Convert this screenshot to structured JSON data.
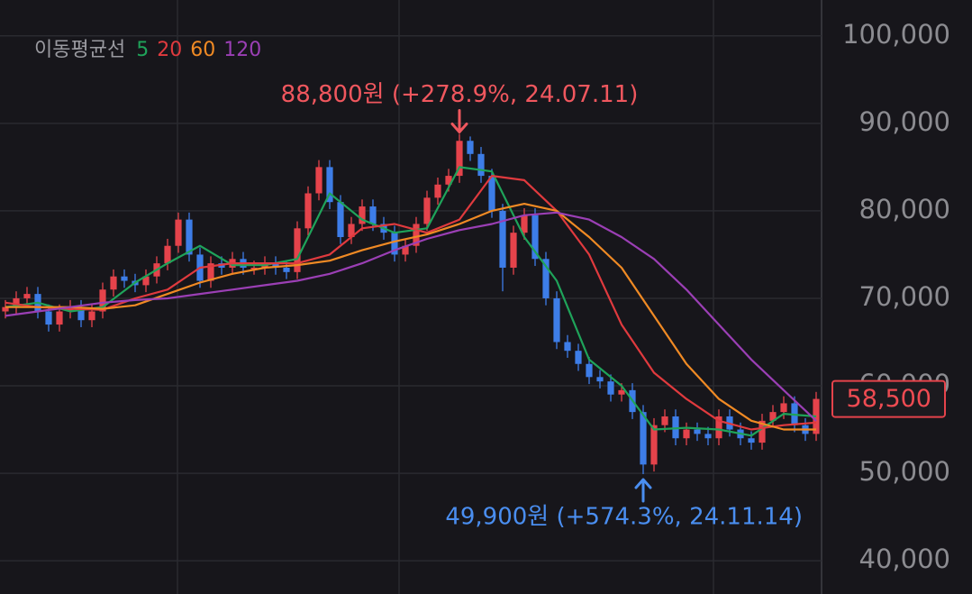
{
  "chart_data": {
    "type": "candlestick",
    "legend_title": "이동평균선",
    "xlim": [
      -0.5,
      75.5
    ],
    "ylim": [
      36200,
      104100
    ],
    "yticks": [
      {
        "value": 40000,
        "label": "40,000"
      },
      {
        "value": 50000,
        "label": "50,000"
      },
      {
        "value": 60000,
        "label": "60,000"
      },
      {
        "value": 70000,
        "label": "70,000"
      },
      {
        "value": 80000,
        "label": "80,000"
      },
      {
        "value": 90000,
        "label": "90,000"
      },
      {
        "value": 100000,
        "label": "100,000"
      }
    ],
    "grid": true,
    "candles": {
      "up_color": "#e5434b",
      "down_color": "#3d7de8",
      "open": [
        68500,
        69000,
        70000,
        70500,
        68500,
        67000,
        68500,
        69000,
        67500,
        68500,
        71000,
        72500,
        72000,
        71500,
        72500,
        74000,
        76000,
        79000,
        75000,
        72000,
        74000,
        73500,
        74500,
        73500,
        73500,
        74000,
        73500,
        73000,
        78000,
        82000,
        85000,
        81000,
        77000,
        78500,
        80500,
        78500,
        77500,
        75000,
        76000,
        78500,
        81500,
        83000,
        84000,
        88000,
        86500,
        84000,
        80000,
        73500,
        77500,
        79500,
        74500,
        70000,
        65000,
        64000,
        62500,
        61000,
        60500,
        59000,
        59500,
        57000,
        51000,
        55500,
        56500,
        54000,
        55000,
        54500,
        54000,
        56500,
        55000,
        54000,
        53500,
        56000,
        57000,
        58000,
        55500,
        54500
      ],
      "high": [
        69800,
        70800,
        71300,
        71300,
        69300,
        69300,
        69800,
        69800,
        69300,
        71800,
        73300,
        73300,
        72800,
        73300,
        74800,
        76800,
        79800,
        79800,
        75800,
        74800,
        74800,
        75300,
        75300,
        74300,
        74800,
        74800,
        74300,
        78800,
        82800,
        85800,
        85800,
        81800,
        79300,
        81300,
        81300,
        79300,
        78300,
        76800,
        79300,
        82300,
        83800,
        84800,
        88800,
        88500,
        87300,
        84800,
        80800,
        78300,
        80300,
        80300,
        75300,
        70800,
        65800,
        64800,
        63300,
        61800,
        61300,
        60300,
        60300,
        57800,
        56300,
        57300,
        57300,
        55800,
        55800,
        55300,
        57300,
        57300,
        55800,
        54800,
        56800,
        57800,
        58800,
        58800,
        56300,
        59300
      ],
      "low": [
        67700,
        68200,
        69200,
        67700,
        66200,
        66200,
        67700,
        66700,
        66700,
        67700,
        70200,
        71200,
        70700,
        70700,
        71700,
        73200,
        75200,
        74200,
        71200,
        71200,
        72700,
        72700,
        72700,
        72700,
        72700,
        72700,
        72200,
        72200,
        77200,
        81200,
        80200,
        76200,
        76200,
        77700,
        77700,
        76700,
        74200,
        74200,
        75200,
        77700,
        80700,
        82200,
        83200,
        85700,
        83200,
        79200,
        70800,
        72700,
        76700,
        73700,
        69200,
        64200,
        63200,
        61700,
        60200,
        59700,
        58200,
        58200,
        56200,
        49900,
        50200,
        54700,
        53200,
        53200,
        53700,
        53200,
        53200,
        54200,
        53200,
        52700,
        52700,
        55200,
        56200,
        54700,
        53700,
        53700
      ],
      "close": [
        69000,
        70000,
        70500,
        68500,
        67000,
        68500,
        69000,
        67500,
        68500,
        71000,
        72500,
        72000,
        71500,
        72500,
        74000,
        76000,
        79000,
        75000,
        72000,
        74000,
        73500,
        74500,
        73500,
        73500,
        74000,
        73500,
        73000,
        78000,
        82000,
        85000,
        81000,
        77000,
        78500,
        80500,
        78500,
        77500,
        75000,
        76000,
        78500,
        81500,
        83000,
        84000,
        88000,
        86500,
        84000,
        80000,
        73500,
        77500,
        79500,
        74500,
        70000,
        65000,
        64000,
        62500,
        61000,
        60500,
        59000,
        59500,
        57000,
        51000,
        55500,
        56500,
        54000,
        55000,
        54500,
        54000,
        56500,
        55000,
        54000,
        53500,
        56000,
        57000,
        58000,
        55500,
        54500,
        58500
      ]
    },
    "ma_x": [
      0,
      3,
      6,
      9,
      12,
      15,
      18,
      21,
      24,
      27,
      30,
      33,
      36,
      39,
      42,
      45,
      48,
      51,
      54,
      57,
      60,
      63,
      66,
      69,
      72,
      75
    ],
    "series": [
      {
        "name": "5",
        "color": "#1fa35a",
        "values": [
          69000,
          69500,
          68500,
          69000,
          71800,
          74000,
          76000,
          73800,
          73800,
          74500,
          82000,
          79000,
          77500,
          78000,
          85000,
          84500,
          77000,
          72000,
          63000,
          60000,
          55000,
          55200,
          55000,
          54300,
          56800,
          56500
        ]
      },
      {
        "name": "20",
        "color": "#e03a3e",
        "values": [
          69500,
          69000,
          68800,
          68700,
          70000,
          71000,
          73500,
          74000,
          74000,
          74000,
          75000,
          78000,
          78500,
          77500,
          79000,
          84000,
          83500,
          80000,
          75000,
          67000,
          61500,
          58500,
          56000,
          55000,
          55500,
          55800
        ]
      },
      {
        "name": "60",
        "color": "#f08a24",
        "values": [
          69000,
          69000,
          69000,
          68800,
          69200,
          70500,
          71800,
          72800,
          73500,
          73800,
          74300,
          75500,
          76500,
          77300,
          78500,
          80000,
          80800,
          80000,
          77000,
          73500,
          68000,
          62500,
          58500,
          56000,
          55000,
          55000
        ]
      },
      {
        "name": "120",
        "color": "#9b3fb5",
        "values": [
          68000,
          68500,
          69000,
          69500,
          69800,
          70000,
          70500,
          71000,
          71500,
          72000,
          72800,
          74000,
          75500,
          76800,
          77800,
          78500,
          79500,
          79800,
          79000,
          77000,
          74500,
          71000,
          67000,
          63000,
          59500,
          56000
        ]
      }
    ],
    "annotations": [
      {
        "text": "88,800원 (+278.9%, 24.07.11)",
        "x": 42,
        "y": 88800,
        "placement": "above",
        "color": "#f0575e"
      },
      {
        "text": "49,900원 (+574.3%, 24.11.14)",
        "x": 59,
        "y": 49900,
        "placement": "below",
        "color": "#4a8ef0"
      }
    ],
    "last_price": {
      "value": 58500,
      "label": "58,500"
    }
  }
}
